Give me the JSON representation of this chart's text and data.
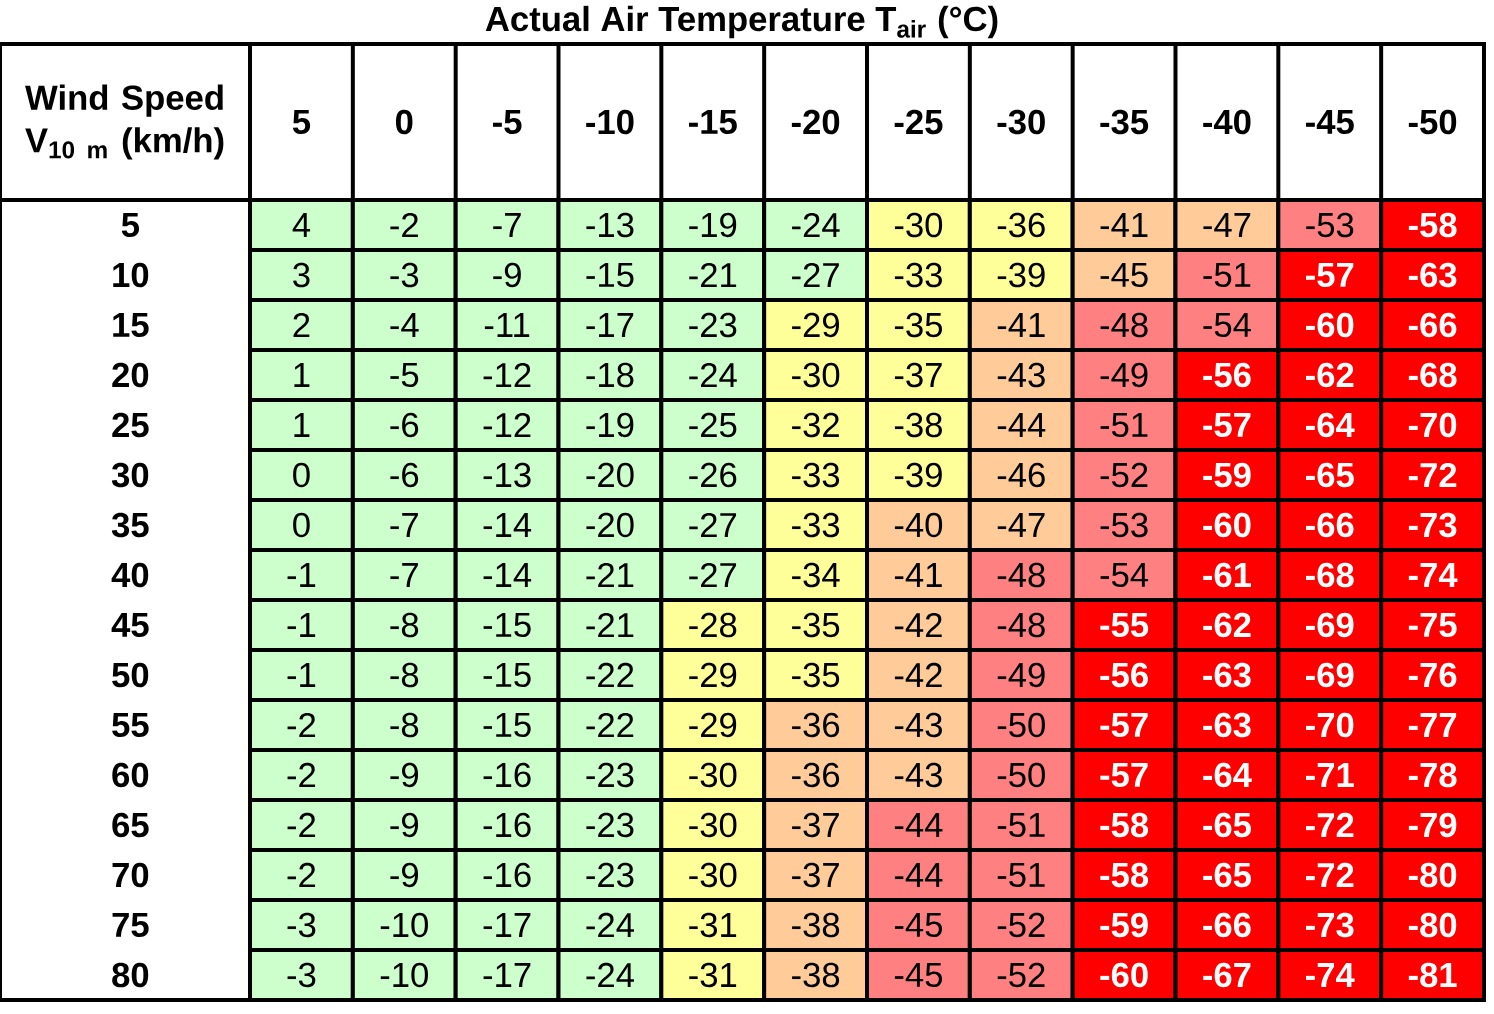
{
  "chart_data": {
    "type": "heatmap",
    "xlabel": "Actual Air Temperature T$_{air}$ (°C)",
    "ylabel": "Wind Speed V$_{10 m}$ (km/h)",
    "categories": [
      "5",
      "0",
      "-5",
      "-10",
      "-15",
      "-20",
      "-25",
      "-30",
      "-35",
      "-40",
      "-45",
      "-50"
    ],
    "y_categories": [
      "5",
      "10",
      "15",
      "20",
      "25",
      "30",
      "35",
      "40",
      "45",
      "50",
      "55",
      "60",
      "65",
      "70",
      "75",
      "80"
    ],
    "cells": [
      [
        4,
        -2,
        -7,
        -13,
        -19,
        -24,
        -30,
        -36,
        -41,
        -47,
        -53,
        -58
      ],
      [
        3,
        -3,
        -9,
        -15,
        -21,
        -27,
        -33,
        -39,
        -45,
        -51,
        -57,
        -63
      ],
      [
        2,
        -4,
        -11,
        -17,
        -23,
        -29,
        -35,
        -41,
        -48,
        -54,
        -60,
        -66
      ],
      [
        1,
        -5,
        -12,
        -18,
        -24,
        -30,
        -37,
        -43,
        -49,
        -56,
        -62,
        -68
      ],
      [
        1,
        -6,
        -12,
        -19,
        -25,
        -32,
        -38,
        -44,
        -51,
        -57,
        -64,
        -70
      ],
      [
        0,
        -6,
        -13,
        -20,
        -26,
        -33,
        -39,
        -46,
        -52,
        -59,
        -65,
        -72
      ],
      [
        0,
        -7,
        -14,
        -20,
        -27,
        -33,
        -40,
        -47,
        -53,
        -60,
        -66,
        -73
      ],
      [
        -1,
        -7,
        -14,
        -21,
        -27,
        -34,
        -41,
        -48,
        -54,
        -61,
        -68,
        -74
      ],
      [
        -1,
        -8,
        -15,
        -21,
        -28,
        -35,
        -42,
        -48,
        -55,
        -62,
        -69,
        -75
      ],
      [
        -1,
        -8,
        -15,
        -22,
        -29,
        -35,
        -42,
        -49,
        -56,
        -63,
        -69,
        -76
      ],
      [
        -2,
        -8,
        -15,
        -22,
        -29,
        -36,
        -43,
        -50,
        -57,
        -63,
        -70,
        -77
      ],
      [
        -2,
        -9,
        -16,
        -23,
        -30,
        -36,
        -43,
        -50,
        -57,
        -64,
        -71,
        -78
      ],
      [
        -2,
        -9,
        -16,
        -23,
        -30,
        -37,
        -44,
        -51,
        -58,
        -65,
        -72,
        -79
      ],
      [
        -2,
        -9,
        -16,
        -23,
        -30,
        -37,
        -44,
        -51,
        -58,
        -65,
        -72,
        -80
      ],
      [
        -3,
        -10,
        -17,
        -24,
        -31,
        -38,
        -45,
        -52,
        -59,
        -66,
        -73,
        -80
      ],
      [
        -3,
        -10,
        -17,
        -24,
        -31,
        -38,
        -45,
        -52,
        -60,
        -67,
        -74,
        -81
      ]
    ],
    "colors": [
      [
        "#ccffcc",
        "#ccffcc",
        "#ccffcc",
        "#ccffcc",
        "#ccffcc",
        "#ccffcc",
        "#ffff99",
        "#ffff99",
        "#ffcc99",
        "#ffcc99",
        "#ff8080",
        "#ff0000"
      ],
      [
        "#ccffcc",
        "#ccffcc",
        "#ccffcc",
        "#ccffcc",
        "#ccffcc",
        "#ccffcc",
        "#ffff99",
        "#ffff99",
        "#ffcc99",
        "#ff8080",
        "#ff0000",
        "#ff0000"
      ],
      [
        "#ccffcc",
        "#ccffcc",
        "#ccffcc",
        "#ccffcc",
        "#ccffcc",
        "#ffff99",
        "#ffff99",
        "#ffcc99",
        "#ff8080",
        "#ff8080",
        "#ff0000",
        "#ff0000"
      ],
      [
        "#ccffcc",
        "#ccffcc",
        "#ccffcc",
        "#ccffcc",
        "#ccffcc",
        "#ffff99",
        "#ffff99",
        "#ffcc99",
        "#ff8080",
        "#ff0000",
        "#ff0000",
        "#ff0000"
      ],
      [
        "#ccffcc",
        "#ccffcc",
        "#ccffcc",
        "#ccffcc",
        "#ccffcc",
        "#ffff99",
        "#ffff99",
        "#ffcc99",
        "#ff8080",
        "#ff0000",
        "#ff0000",
        "#ff0000"
      ],
      [
        "#ccffcc",
        "#ccffcc",
        "#ccffcc",
        "#ccffcc",
        "#ccffcc",
        "#ffff99",
        "#ffff99",
        "#ffcc99",
        "#ff8080",
        "#ff0000",
        "#ff0000",
        "#ff0000"
      ],
      [
        "#ccffcc",
        "#ccffcc",
        "#ccffcc",
        "#ccffcc",
        "#ccffcc",
        "#ffff99",
        "#ffcc99",
        "#ffcc99",
        "#ff8080",
        "#ff0000",
        "#ff0000",
        "#ff0000"
      ],
      [
        "#ccffcc",
        "#ccffcc",
        "#ccffcc",
        "#ccffcc",
        "#ccffcc",
        "#ffff99",
        "#ffcc99",
        "#ff8080",
        "#ff8080",
        "#ff0000",
        "#ff0000",
        "#ff0000"
      ],
      [
        "#ccffcc",
        "#ccffcc",
        "#ccffcc",
        "#ccffcc",
        "#ffff99",
        "#ffff99",
        "#ffcc99",
        "#ff8080",
        "#ff0000",
        "#ff0000",
        "#ff0000",
        "#ff0000"
      ],
      [
        "#ccffcc",
        "#ccffcc",
        "#ccffcc",
        "#ccffcc",
        "#ffff99",
        "#ffff99",
        "#ffcc99",
        "#ff8080",
        "#ff0000",
        "#ff0000",
        "#ff0000",
        "#ff0000"
      ],
      [
        "#ccffcc",
        "#ccffcc",
        "#ccffcc",
        "#ccffcc",
        "#ffff99",
        "#ffcc99",
        "#ffcc99",
        "#ff8080",
        "#ff0000",
        "#ff0000",
        "#ff0000",
        "#ff0000"
      ],
      [
        "#ccffcc",
        "#ccffcc",
        "#ccffcc",
        "#ccffcc",
        "#ffff99",
        "#ffcc99",
        "#ffcc99",
        "#ff8080",
        "#ff0000",
        "#ff0000",
        "#ff0000",
        "#ff0000"
      ],
      [
        "#ccffcc",
        "#ccffcc",
        "#ccffcc",
        "#ccffcc",
        "#ffff99",
        "#ffcc99",
        "#ff8080",
        "#ff8080",
        "#ff0000",
        "#ff0000",
        "#ff0000",
        "#ff0000"
      ],
      [
        "#ccffcc",
        "#ccffcc",
        "#ccffcc",
        "#ccffcc",
        "#ffff99",
        "#ffcc99",
        "#ff8080",
        "#ff8080",
        "#ff0000",
        "#ff0000",
        "#ff0000",
        "#ff0000"
      ],
      [
        "#ccffcc",
        "#ccffcc",
        "#ccffcc",
        "#ccffcc",
        "#ffff99",
        "#ffcc99",
        "#ff8080",
        "#ff8080",
        "#ff0000",
        "#ff0000",
        "#ff0000",
        "#ff0000"
      ],
      [
        "#ccffcc",
        "#ccffcc",
        "#ccffcc",
        "#ccffcc",
        "#ffff99",
        "#ffcc99",
        "#ff8080",
        "#ff8080",
        "#ff0000",
        "#ff0000",
        "#ff0000",
        "#ff0000"
      ]
    ],
    "data_labels": true
  }
}
